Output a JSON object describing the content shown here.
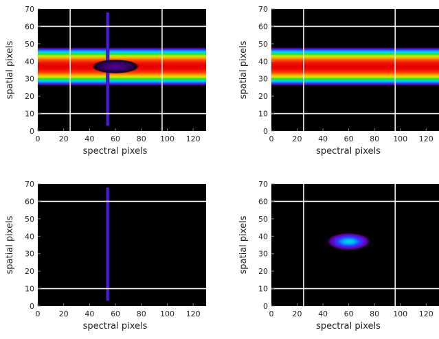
{
  "chart_data": [
    {
      "type": "heatmap",
      "id": "panel-top-left",
      "xlabel": "spectral pixels",
      "ylabel": "spatial pixels",
      "xlim": [
        0,
        130
      ],
      "ylim": [
        0,
        70
      ],
      "xticks": [
        0,
        20,
        40,
        60,
        80,
        100,
        120
      ],
      "yticks": [
        0,
        10,
        20,
        30,
        40,
        50,
        60,
        70
      ],
      "colormap": "rainbow",
      "background": "#000000",
      "gridlines": {
        "x": [
          25,
          96
        ],
        "y": [
          10,
          60
        ]
      },
      "components": [
        {
          "kind": "horizontal-band",
          "center_y": 37,
          "half_width_y": 11,
          "peak": 1.0
        },
        {
          "kind": "vertical-line",
          "x": 54,
          "y_range": [
            3,
            68
          ],
          "peak": 0.25
        },
        {
          "kind": "spot",
          "center_x": 60,
          "center_y": 37,
          "radius_x": 18,
          "radius_y": 4,
          "peak": 0.12
        }
      ]
    },
    {
      "type": "heatmap",
      "id": "panel-top-right",
      "xlabel": "spectral pixels",
      "ylabel": "spatial pixels",
      "xlim": [
        0,
        130
      ],
      "ylim": [
        0,
        70
      ],
      "xticks": [
        0,
        20,
        40,
        60,
        80,
        100,
        120
      ],
      "yticks": [
        0,
        10,
        20,
        30,
        40,
        50,
        60,
        70
      ],
      "colormap": "rainbow",
      "background": "#000000",
      "gridlines": {
        "x": [
          25,
          96
        ],
        "y": [
          10,
          60
        ]
      },
      "components": [
        {
          "kind": "horizontal-band",
          "center_y": 37,
          "half_width_y": 11,
          "peak": 1.0
        }
      ]
    },
    {
      "type": "heatmap",
      "id": "panel-bottom-left",
      "xlabel": "spectral pixels",
      "ylabel": "spatial pixels",
      "xlim": [
        0,
        130
      ],
      "ylim": [
        0,
        70
      ],
      "xticks": [
        0,
        20,
        40,
        60,
        80,
        100,
        120
      ],
      "yticks": [
        0,
        10,
        20,
        30,
        40,
        50,
        60,
        70
      ],
      "colormap": "rainbow",
      "background": "#000000",
      "gridlines": {
        "x": [],
        "y": [
          10,
          60
        ]
      },
      "components": [
        {
          "kind": "vertical-line",
          "x": 54,
          "y_range": [
            3,
            68
          ],
          "peak": 0.25
        }
      ]
    },
    {
      "type": "heatmap",
      "id": "panel-bottom-right",
      "xlabel": "spectral pixels",
      "ylabel": "spatial pixels",
      "xlim": [
        0,
        130
      ],
      "ylim": [
        0,
        70
      ],
      "xticks": [
        0,
        20,
        40,
        60,
        80,
        100,
        120
      ],
      "yticks": [
        0,
        10,
        20,
        30,
        40,
        50,
        60,
        70
      ],
      "colormap": "rainbow",
      "background": "#000000",
      "gridlines": {
        "x": [
          25,
          96
        ],
        "y": [
          10,
          60
        ]
      },
      "components": [
        {
          "kind": "spot",
          "center_x": 60,
          "center_y": 37,
          "radius_x": 17,
          "radius_y": 5,
          "peak": 0.5
        }
      ]
    }
  ]
}
